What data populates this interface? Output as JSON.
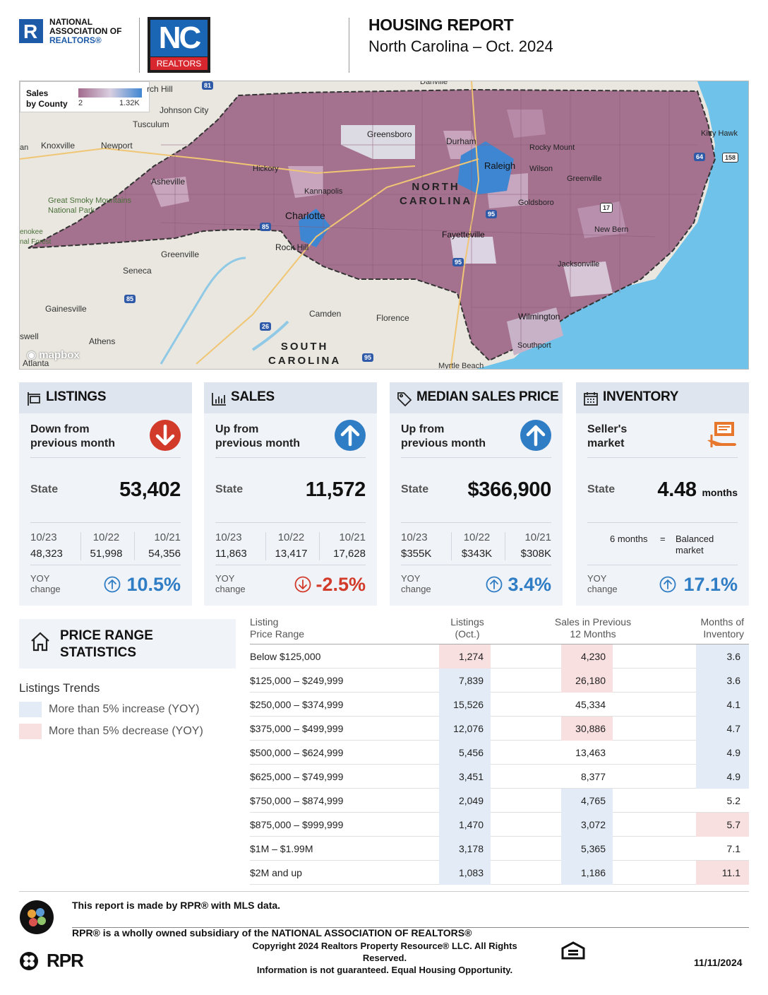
{
  "header": {
    "nar_logo": "R",
    "nar_lines": [
      "NATIONAL",
      "ASSOCIATION OF",
      "REALTORS®"
    ],
    "nc_logo": "NC",
    "nc_sub": "REALTORS",
    "title": "HOUSING REPORT",
    "subtitle": "North Carolina  –  Oct. 2024"
  },
  "map": {
    "legend_title": [
      "Sales",
      "by County"
    ],
    "legend_min": "2",
    "legend_max": "1.32K",
    "attribution": "mapbox",
    "state_label": [
      "NORTH",
      "CAROLINA"
    ],
    "sc_label": [
      "SOUTH",
      "CAROLINA"
    ],
    "cities": [
      "Danville",
      "rch Hill",
      "Johnson City",
      "Tusculum",
      "Knoxville",
      "Newport",
      "Greensboro",
      "Durham",
      "Raleigh",
      "Rocky Mount",
      "Wilson",
      "Kitty Hawk",
      "Hickory",
      "Kannapolis",
      "Asheville",
      "Charlotte",
      "Greenville",
      "Goldsboro",
      "Fayetteville",
      "New Bern",
      "Rock Hill",
      "Greenville",
      "Seneca",
      "Jacksonville",
      "Gainesville",
      "Camden",
      "Florence",
      "Wilmington",
      "Athens",
      "Southport",
      "Myrtle Beach",
      "Great Smoky Mountains National Park",
      "swell",
      "Atlanta",
      "enokee",
      "nal Forest",
      "an"
    ],
    "route_shields": [
      "81",
      "85",
      "95",
      "95",
      "17",
      "64",
      "158",
      "26",
      "85",
      "95"
    ],
    "colors": {
      "low": "#a26b8d",
      "mid": "#d9cfe0",
      "high": "#3f86d2",
      "water": "#6fc3ea",
      "land": "#e9e7df"
    }
  },
  "cards": [
    {
      "title": "LISTINGS",
      "icon": "sign-icon",
      "trend": [
        "Down from",
        "previous month"
      ],
      "trend_dir": "down",
      "state_label": "State",
      "state_value": "53,402",
      "state_unit": "",
      "history": [
        {
          "year": "10/23",
          "value": "48,323"
        },
        {
          "year": "10/22",
          "value": "51,998"
        },
        {
          "year": "10/21",
          "value": "54,356"
        }
      ],
      "yoy_label": [
        "YOY",
        "change"
      ],
      "yoy_value": "10.5%",
      "yoy_dir": "up"
    },
    {
      "title": "SALES",
      "icon": "bar-chart-icon",
      "trend": [
        "Up from",
        "previous month"
      ],
      "trend_dir": "up",
      "state_label": "State",
      "state_value": "11,572",
      "state_unit": "",
      "history": [
        {
          "year": "10/23",
          "value": "11,863"
        },
        {
          "year": "10/22",
          "value": "13,417"
        },
        {
          "year": "10/21",
          "value": "17,628"
        }
      ],
      "yoy_label": [
        "YOY",
        "change"
      ],
      "yoy_value": "-2.5%",
      "yoy_dir": "down"
    },
    {
      "title": "MEDIAN SALES PRICE",
      "icon": "price-tag-icon",
      "trend": [
        "Up from",
        "previous month"
      ],
      "trend_dir": "up",
      "state_label": "State",
      "state_value": "$366,900",
      "state_unit": "",
      "history": [
        {
          "year": "10/23",
          "value": "$355K"
        },
        {
          "year": "10/22",
          "value": "$343K"
        },
        {
          "year": "10/21",
          "value": "$308K"
        }
      ],
      "yoy_label": [
        "YOY",
        "change"
      ],
      "yoy_value": "3.4%",
      "yoy_dir": "up"
    },
    {
      "title": "INVENTORY",
      "icon": "calendar-icon",
      "trend": [
        "Seller's",
        "market"
      ],
      "trend_dir": "seller",
      "state_label": "State",
      "state_value": "4.48",
      "state_unit": "months",
      "balanced": {
        "left": "6 months",
        "eq": "=",
        "right": [
          "Balanced",
          "market"
        ]
      },
      "yoy_label": [
        "YOY",
        "change"
      ],
      "yoy_value": "17.1%",
      "yoy_dir": "up"
    }
  ],
  "price_range": {
    "title": [
      "PRICE RANGE",
      "STATISTICS"
    ],
    "legend_title": "Listings Trends",
    "legend": [
      {
        "label": "More than 5% increase (YOY)",
        "color": "#e3ecf6"
      },
      {
        "label": "More than 5% decrease (YOY)",
        "color": "#f8e0e0"
      }
    ],
    "headers": [
      [
        "Listing",
        "Price Range"
      ],
      [
        "Listings",
        "(Oct.)"
      ],
      [
        "Sales in Previous",
        "12 Months"
      ],
      [
        "Months of",
        "Inventory"
      ]
    ],
    "rows": [
      {
        "range": "Below $125,000",
        "listings": "1,274",
        "sales": "4,230",
        "months": "3.6",
        "l": "dec",
        "s": "dec",
        "m": "inc"
      },
      {
        "range": "$125,000  –  $249,999",
        "listings": "7,839",
        "sales": "26,180",
        "months": "3.6",
        "l": "inc",
        "s": "dec",
        "m": "inc"
      },
      {
        "range": "$250,000  –  $374,999",
        "listings": "15,526",
        "sales": "45,334",
        "months": "4.1",
        "l": "inc",
        "s": "none",
        "m": "inc"
      },
      {
        "range": "$375,000  –  $499,999",
        "listings": "12,076",
        "sales": "30,886",
        "months": "4.7",
        "l": "inc",
        "s": "dec",
        "m": "inc"
      },
      {
        "range": "$500,000  –  $624,999",
        "listings": "5,456",
        "sales": "13,463",
        "months": "4.9",
        "l": "inc",
        "s": "none",
        "m": "inc"
      },
      {
        "range": "$625,000  –  $749,999",
        "listings": "3,451",
        "sales": "8,377",
        "months": "4.9",
        "l": "inc",
        "s": "none",
        "m": "inc"
      },
      {
        "range": "$750,000  –  $874,999",
        "listings": "2,049",
        "sales": "4,765",
        "months": "5.2",
        "l": "inc",
        "s": "inc",
        "m": "none"
      },
      {
        "range": "$875,000  –  $999,999",
        "listings": "1,470",
        "sales": "3,072",
        "months": "5.7",
        "l": "inc",
        "s": "inc",
        "m": "dec"
      },
      {
        "range": "$1M  –  $1.99M",
        "listings": "3,178",
        "sales": "5,365",
        "months": "7.1",
        "l": "inc",
        "s": "inc",
        "m": "none"
      },
      {
        "range": "$2M  and  up",
        "listings": "1,083",
        "sales": "1,186",
        "months": "11.1",
        "l": "inc",
        "s": "inc",
        "m": "dec"
      }
    ]
  },
  "footer": {
    "line1": "This report is made by RPR® with MLS data.",
    "line2": "RPR® is a wholly owned subsidiary of the NATIONAL ASSOCIATION OF REALTORS®",
    "copyright": [
      "Copyright 2024 Realtors Property Resource® LLC. All Rights",
      "Reserved.",
      "Information is not guaranteed. Equal Housing Opportunity."
    ],
    "rpr": "RPR",
    "date": "11/11/2024"
  },
  "colors": {
    "up": "#2f7dc4",
    "down": "#d23a2a",
    "inc": "#e3ecf6",
    "dec": "#f8e0e0",
    "card_bg": "#f0f3f7",
    "card_head": "#dfe5ee",
    "seller": "#e8772e"
  }
}
